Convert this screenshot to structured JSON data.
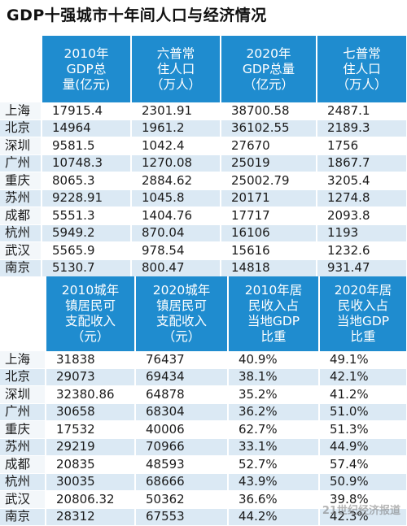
{
  "title": "GDP十强城市十年间人口与经济情况",
  "table1": {
    "headers": [
      "",
      "2010年\nGDP总\n量(亿元)",
      "六普常\n住人口\n（万人）",
      "2020年\nGDP总量\n（亿元）",
      "七普常\n住人口\n（万人）"
    ],
    "rows": [
      [
        "上海",
        "17915.4",
        "2301.91",
        "38700.58",
        "2487.1"
      ],
      [
        "北京",
        "14964",
        "1961.2",
        "36102.55",
        "2189.3"
      ],
      [
        "深圳",
        "9581.5",
        "1042.4",
        "27670",
        "1756"
      ],
      [
        "广州",
        "10748.3",
        "1270.08",
        "25019",
        "1867.7"
      ],
      [
        "重庆",
        "8065.3",
        "2884.62",
        "25002.79",
        "3205.4"
      ],
      [
        "苏州",
        "9228.91",
        "1045.8",
        "20171",
        "1274.8"
      ],
      [
        "成都",
        "5551.3",
        "1404.76",
        "17717",
        "2093.8"
      ],
      [
        "杭州",
        "5949.2",
        "870.04",
        "16106",
        "1193"
      ],
      [
        "武汉",
        "5565.9",
        "978.54",
        "15616",
        "1232.6"
      ],
      [
        "南京",
        "5130.7",
        "800.47",
        "14818",
        "931.47"
      ]
    ]
  },
  "table2": {
    "headers": [
      "",
      "2010城年\n镇居民可\n支配收入\n（元）",
      "2020城年\n镇居民可\n支配收入\n（元）",
      "2010年居\n民收入占\n当地GDP\n比重",
      "2020年居\n民收入占\n当地GDP\n比重"
    ],
    "rows": [
      [
        "上海",
        "31838",
        "76437",
        "40.9%",
        "49.1%"
      ],
      [
        "北京",
        "29073",
        "69434",
        "38.1%",
        "42.1%"
      ],
      [
        "深圳",
        "32380.86",
        "64878",
        "35.2%",
        "41.2%"
      ],
      [
        "广州",
        "30658",
        "68304",
        "36.2%",
        "51.0%"
      ],
      [
        "重庆",
        "17532",
        "40006",
        "62.7%",
        "51.3%"
      ],
      [
        "苏州",
        "29219",
        "70966",
        "33.1%",
        "44.9%"
      ],
      [
        "成都",
        "20835",
        "48593",
        "52.7%",
        "57.4%"
      ],
      [
        "杭州",
        "30035",
        "68666",
        "43.9%",
        "50.9%"
      ],
      [
        "武汉",
        "20806.32",
        "50362",
        "36.6%",
        "39.8%"
      ],
      [
        "南京",
        "28312",
        "67553",
        "44.2%",
        "42.3%"
      ]
    ]
  },
  "watermark": "21世纪经济报道"
}
